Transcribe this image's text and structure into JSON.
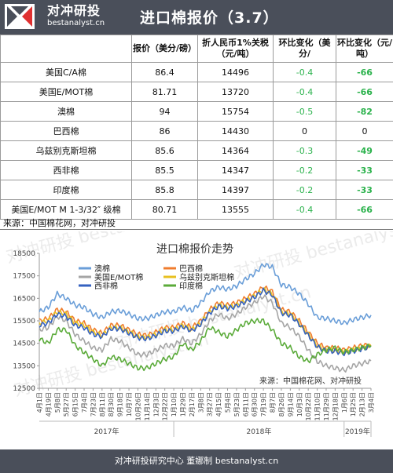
{
  "header": {
    "logo_cn": "对冲研投",
    "logo_en": "bestanalyst.cn",
    "title": "进口棉报价（3.7）"
  },
  "table": {
    "columns": [
      "",
      "报价（美分/磅）",
      "折人民币1%关税（元/吨）",
      "环比变化（美分/",
      "环比变化（元/吨）"
    ],
    "rows": [
      {
        "name": "美国C/A棉",
        "price": "86.4",
        "rmb": "14496",
        "chg_cent": "-0.4",
        "chg_rmb": "-66"
      },
      {
        "name": "美国E/MOT棉",
        "price": "81.71",
        "rmb": "13720",
        "chg_cent": "-0.4",
        "chg_rmb": "-66"
      },
      {
        "name": "澳棉",
        "price": "94",
        "rmb": "15754",
        "chg_cent": "-0.5",
        "chg_rmb": "-82"
      },
      {
        "name": "巴西棉",
        "price": "86",
        "rmb": "14430",
        "chg_cent": "0",
        "chg_rmb": "0"
      },
      {
        "name": "乌兹别克斯坦棉",
        "price": "85.6",
        "rmb": "14364",
        "chg_cent": "-0.3",
        "chg_rmb": "-49"
      },
      {
        "name": "西非棉",
        "price": "85.5",
        "rmb": "14347",
        "chg_cent": "-0.2",
        "chg_rmb": "-33"
      },
      {
        "name": "印度棉",
        "price": "85.8",
        "rmb": "14397",
        "chg_cent": "-0.2",
        "chg_rmb": "-33"
      },
      {
        "name": "美国E/MOT M 1-3/32″ 级棉",
        "price": "80.71",
        "rmb": "13555",
        "chg_cent": "-0.4",
        "chg_rmb": "-66"
      }
    ]
  },
  "source_table": "来源：中国棉花网，对冲研投",
  "watermark": "对冲研投 bestanalyst.cn",
  "chart_data": {
    "type": "line",
    "title": "进口棉报价走势",
    "source_note": "来源：中国棉花网、对冲研投",
    "ylim": [
      12500,
      18500
    ],
    "yticks": [
      12500,
      13500,
      14500,
      15500,
      16500,
      17500,
      18500
    ],
    "x_tick_labels": [
      "4月1日",
      "4月19日",
      "5月8日",
      "5月27日",
      "6月15日",
      "7月4日",
      "7月23日",
      "8月11日",
      "8月30日",
      "9月18日",
      "10月7日",
      "10月26日",
      "11月14日",
      "12月3日",
      "12月22日",
      "1月10日",
      "1月29日",
      "2月17日",
      "3月8日",
      "3月27日",
      "4月15日",
      "5月4日",
      "5月23日",
      "6月11日",
      "6月30日",
      "7月19日",
      "8月7日",
      "8月26日",
      "9月14日",
      "10月3日",
      "10月22日",
      "11月10日",
      "11月29日",
      "12月18日",
      "1月6日",
      "1月25日",
      "2月13日",
      "3月4日"
    ],
    "year_labels": [
      "2017年",
      "2018年",
      "2019年"
    ],
    "grid": false,
    "legend": "top-left",
    "colors": {
      "澳棉": "#6a9ed8",
      "巴西棉": "#f07c2e",
      "美国E/MOT棉": "#a5a5a5",
      "乌兹别克斯坦棉": "#e8c020",
      "西非棉": "#3562c0",
      "印度棉": "#5bab3a"
    },
    "series": [
      {
        "name": "澳棉",
        "values": [
          15900,
          16100,
          16700,
          16500,
          16200,
          16100,
          15800,
          15650,
          15900,
          15950,
          15800,
          15600,
          15600,
          15750,
          15900,
          15900,
          16100,
          15950,
          16300,
          16800,
          17000,
          16900,
          17050,
          17350,
          17600,
          18000,
          17900,
          17100,
          17000,
          16700,
          16250,
          15650,
          15600,
          15500,
          15400,
          15550,
          15650,
          15754
        ]
      },
      {
        "name": "巴西棉",
        "values": [
          15500,
          15600,
          16000,
          15900,
          15500,
          15400,
          15100,
          14950,
          15300,
          15300,
          15100,
          14900,
          14850,
          15000,
          15200,
          15200,
          15400,
          15200,
          15500,
          16000,
          16300,
          16200,
          16300,
          16500,
          16700,
          17000,
          16800,
          16000,
          15900,
          15500,
          15000,
          14500,
          14300,
          14300,
          14200,
          14300,
          14400,
          14430
        ]
      },
      {
        "name": "美国E/MOT棉",
        "values": [
          15100,
          15200,
          15700,
          15500,
          14900,
          14600,
          14300,
          14200,
          14700,
          14600,
          14300,
          14000,
          14000,
          14200,
          14400,
          14400,
          14700,
          14500,
          14900,
          15500,
          15800,
          15600,
          15800,
          16100,
          16300,
          16600,
          16300,
          15400,
          15200,
          14800,
          14200,
          13700,
          13500,
          13400,
          13300,
          13500,
          13600,
          13720
        ]
      },
      {
        "name": "乌兹别克斯坦棉",
        "values": [
          15400,
          15500,
          15900,
          15800,
          15400,
          15300,
          15000,
          14850,
          15200,
          15200,
          15000,
          14800,
          14750,
          14900,
          15100,
          15100,
          15300,
          15100,
          15400,
          15900,
          16200,
          16100,
          16200,
          16400,
          16600,
          16900,
          16700,
          15900,
          15800,
          15400,
          14900,
          14400,
          14200,
          14200,
          14100,
          14200,
          14300,
          14364
        ]
      },
      {
        "name": "西非棉",
        "values": [
          15300,
          15400,
          15800,
          15700,
          15300,
          15200,
          14900,
          14800,
          15150,
          15150,
          14950,
          14750,
          14700,
          14850,
          15050,
          15050,
          15250,
          15050,
          15350,
          15850,
          16150,
          16050,
          16150,
          16350,
          16550,
          16850,
          16650,
          15850,
          15750,
          15350,
          14850,
          14350,
          14150,
          14150,
          14050,
          14150,
          14250,
          14347
        ]
      },
      {
        "name": "印度棉",
        "values": [
          14700,
          14500,
          15100,
          15100,
          14400,
          14100,
          13800,
          13500,
          13900,
          13800,
          13600,
          13400,
          13400,
          13600,
          13800,
          13900,
          14500,
          14200,
          14600,
          15200,
          15000,
          14800,
          15100,
          15400,
          15500,
          15500,
          15100,
          14500,
          14300,
          13900,
          13700,
          14000,
          14200,
          14300,
          14100,
          14200,
          14300,
          14397
        ]
      }
    ]
  },
  "footer": "对冲研投研究中心  董娜制    bestanalyst.cn"
}
